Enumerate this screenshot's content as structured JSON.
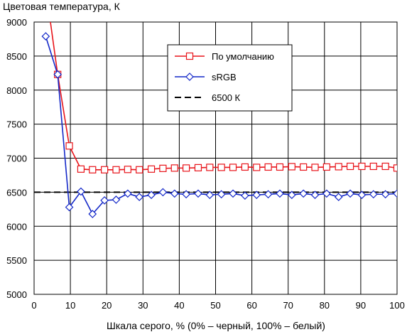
{
  "chart_data": {
    "type": "line",
    "title": "",
    "ylabel": "Цветовая температура, К",
    "xlabel": "Шкала серого, % (0% – черный, 100% – белый)",
    "xlim": [
      0,
      100
    ],
    "ylim": [
      5000,
      9000
    ],
    "xticks": [
      "0",
      "10",
      "20",
      "30",
      "40",
      "50",
      "60",
      "70",
      "80",
      "90",
      "100"
    ],
    "yticks": [
      "5000",
      "5500",
      "6000",
      "6500",
      "7000",
      "7500",
      "8000",
      "8500",
      "9000"
    ],
    "grid": true,
    "legend_position": "upper-center",
    "series": [
      {
        "name": "По умолчанию",
        "color": "#e8141a",
        "marker": "square",
        "line_style": "solid",
        "x": [
          3.2,
          6.5,
          9.7,
          12.9,
          16.1,
          19.4,
          22.6,
          25.8,
          29.0,
          32.3,
          35.5,
          38.7,
          41.9,
          45.2,
          48.4,
          51.6,
          54.8,
          58.1,
          61.3,
          64.5,
          67.7,
          71.0,
          74.2,
          77.4,
          80.6,
          83.9,
          87.1,
          90.3,
          93.5,
          96.8,
          100.0
        ],
        "y": [
          9500,
          8230,
          7180,
          6840,
          6830,
          6830,
          6830,
          6835,
          6830,
          6840,
          6850,
          6855,
          6855,
          6860,
          6865,
          6865,
          6865,
          6870,
          6865,
          6870,
          6870,
          6875,
          6870,
          6865,
          6870,
          6875,
          6880,
          6880,
          6880,
          6880,
          6855
        ]
      },
      {
        "name": "sRGB",
        "color": "#1428c8",
        "marker": "diamond",
        "line_style": "solid",
        "x": [
          3.2,
          6.5,
          9.7,
          12.9,
          16.1,
          19.4,
          22.6,
          25.8,
          29.0,
          32.3,
          35.5,
          38.7,
          41.9,
          45.2,
          48.4,
          51.6,
          54.8,
          58.1,
          61.3,
          64.5,
          67.7,
          71.0,
          74.2,
          77.4,
          80.6,
          83.9,
          87.1,
          90.3,
          93.5,
          96.8,
          100.0
        ],
        "y": [
          8790,
          8230,
          6280,
          6510,
          6180,
          6380,
          6390,
          6480,
          6430,
          6460,
          6500,
          6480,
          6470,
          6480,
          6460,
          6470,
          6480,
          6450,
          6460,
          6470,
          6480,
          6460,
          6480,
          6460,
          6480,
          6430,
          6480,
          6460,
          6470,
          6470,
          6480
        ]
      },
      {
        "name": "6500 К",
        "color": "#000000",
        "marker": "none",
        "line_style": "dashed",
        "x": [
          0,
          100
        ],
        "y": [
          6500,
          6500
        ]
      }
    ]
  }
}
